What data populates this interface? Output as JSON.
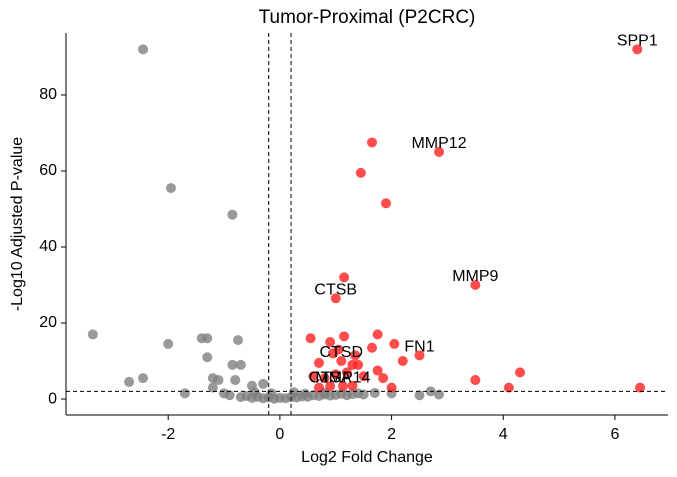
{
  "chart_data": {
    "type": "scatter",
    "title": "Tumor-Proximal (P2CRC)",
    "x_label": "Log2 Fold Change",
    "y_label": "-Log10 Adjusted P-value",
    "xlim": [
      -3.83,
      6.95
    ],
    "ylim": [
      -4.2,
      96.3
    ],
    "xticks": [
      -2,
      0,
      2,
      4,
      6
    ],
    "yticks": [
      0,
      20,
      40,
      60,
      80
    ],
    "thresholds": {
      "x": [
        -0.2,
        0.2
      ],
      "y": 2
    },
    "series": [
      {
        "color": "#808080",
        "x": [
          -2.45,
          -1.95,
          -0.85,
          -3.35,
          -2.0,
          -1.4,
          -1.3,
          -0.75,
          -1.3,
          -0.85,
          -0.7,
          -1.2,
          -1.1,
          -0.8,
          -2.45,
          -2.7,
          -1.7,
          -1.2,
          -0.5,
          -0.3,
          -1.0,
          -0.9,
          -0.7,
          -0.6,
          -0.5,
          -0.4,
          -0.3,
          -0.2,
          -0.1,
          0.0,
          0.1,
          0.2,
          0.3,
          0.4,
          0.5,
          0.6,
          0.7,
          0.8,
          0.9,
          1.0,
          1.1,
          1.2,
          1.3,
          1.4,
          1.5,
          1.7,
          2.0,
          2.5,
          2.7,
          2.85,
          -0.45,
          -0.15,
          0.25,
          0.45,
          0.8
        ],
        "y": [
          92,
          55.5,
          48.5,
          17,
          14.5,
          16,
          16,
          15.5,
          11,
          9,
          9,
          5.5,
          5,
          5,
          5.5,
          4.5,
          1.5,
          3,
          3.5,
          4,
          1.5,
          1.0,
          0.5,
          0.8,
          0.3,
          0.6,
          0.2,
          0.4,
          0.1,
          0.3,
          0.2,
          0.5,
          0.4,
          0.7,
          0.6,
          1.0,
          0.8,
          1.2,
          0.9,
          1.1,
          1.4,
          1.0,
          1.3,
          1.5,
          1.2,
          1.6,
          1.5,
          1.0,
          2.0,
          1.2,
          1.8,
          1.5,
          1.8,
          1.4,
          1.7
        ]
      },
      {
        "color": "#ff2020",
        "x": [
          6.4,
          1.65,
          2.85,
          1.45,
          1.9,
          3.5,
          1.15,
          1.0,
          0.55,
          1.15,
          1.75,
          0.9,
          2.05,
          1.65,
          1.35,
          2.5,
          2.2,
          1.1,
          0.95,
          1.05,
          1.4,
          0.7,
          1.3,
          1.75,
          1.85,
          0.6,
          0.8,
          1.0,
          1.2,
          1.5,
          3.5,
          4.3,
          4.1,
          6.45,
          2.0,
          0.9,
          1.13,
          0.7,
          1.3
        ],
        "y": [
          92,
          67.5,
          65,
          59.5,
          51.5,
          30,
          32,
          26.5,
          16,
          16.5,
          17,
          15,
          14.5,
          13.5,
          11.5,
          11.5,
          10,
          10,
          12,
          13,
          9,
          9.5,
          9,
          7.5,
          5.5,
          6,
          5.5,
          6.5,
          7,
          6,
          5,
          7,
          3,
          3,
          3,
          3.4,
          3.4,
          3,
          3.5
        ],
        "labels": [
          "SPP1",
          null,
          "MMP12",
          null,
          null,
          "MMP9",
          null,
          "CTSB",
          null,
          null,
          null,
          null,
          null,
          null,
          null,
          "FN1",
          null,
          "CTSD",
          null,
          null,
          null,
          null,
          null,
          null,
          null,
          null,
          null,
          null,
          null,
          null,
          null,
          null,
          null,
          null,
          null,
          "CTSA",
          "MMP14",
          null,
          null
        ]
      }
    ]
  }
}
